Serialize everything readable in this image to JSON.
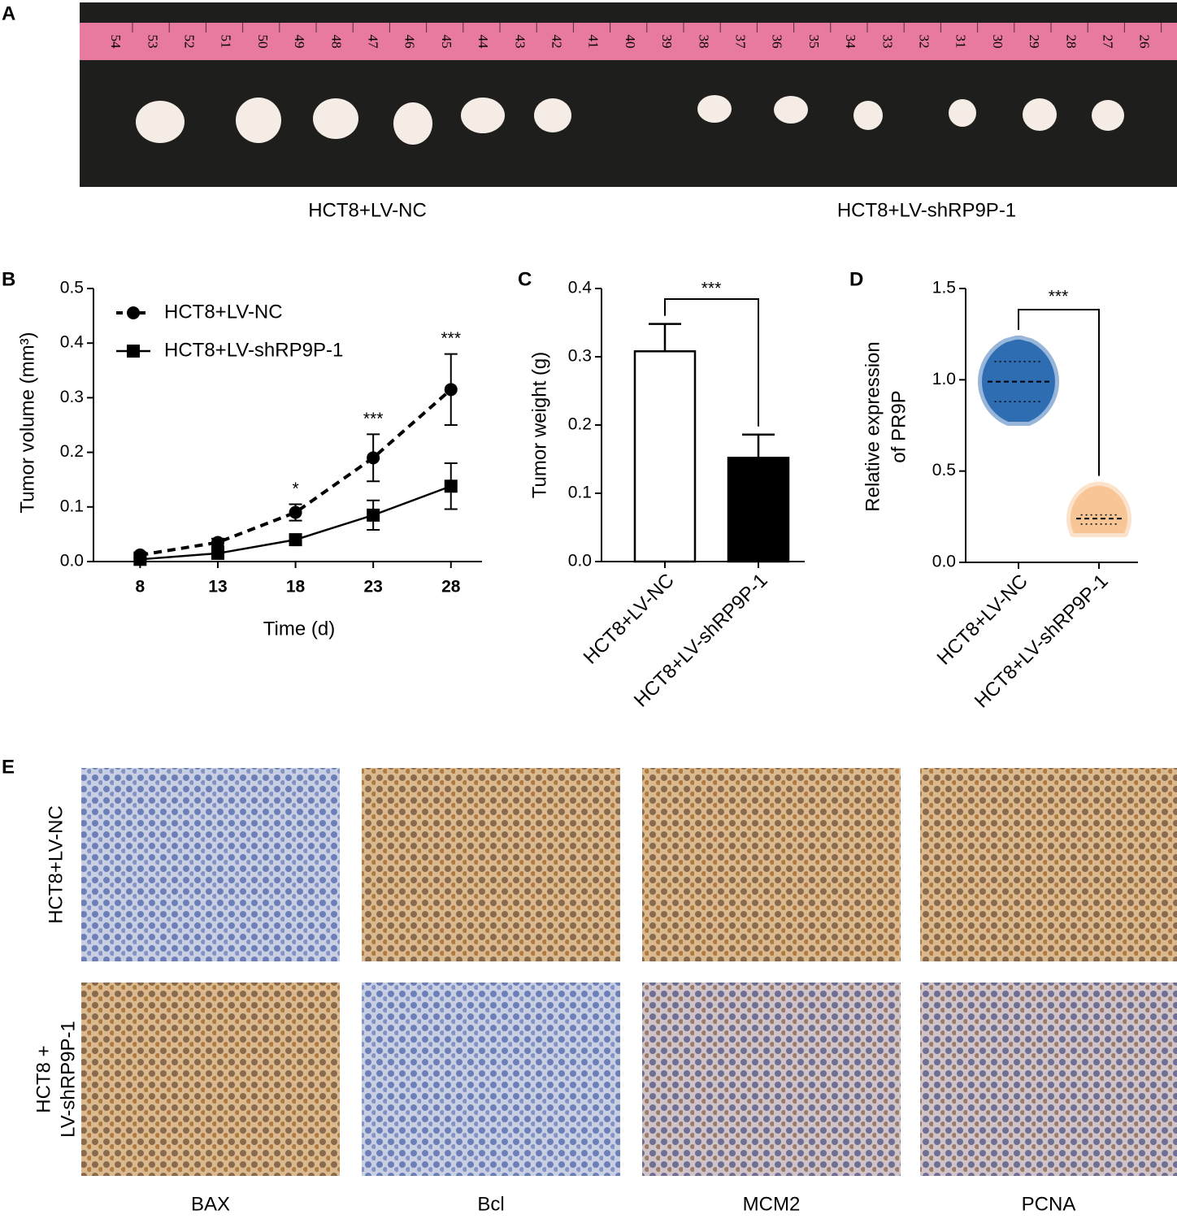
{
  "panel_labels": [
    "A",
    "B",
    "C",
    "D",
    "E"
  ],
  "photo": {
    "ruler_marks": [
      54,
      53,
      52,
      51,
      50,
      49,
      48,
      47,
      46,
      45,
      44,
      43,
      42,
      41,
      40,
      39,
      38,
      37,
      36,
      35,
      34,
      33,
      32,
      31,
      30,
      29,
      28,
      27,
      26
    ],
    "groups": [
      "HCT8+LV-NC",
      "HCT8+LV-shRP9P-1"
    ]
  },
  "chart_data": [
    {
      "type": "line",
      "x": [
        8,
        13,
        18,
        23,
        28
      ],
      "xlim": [
        5,
        30
      ],
      "xticks": [
        8,
        13,
        18,
        23,
        28
      ],
      "ylim": [
        0,
        0.5
      ],
      "yticks": [
        {
          "value": 0,
          "label": "0.0"
        },
        0.1,
        0.2,
        0.3,
        0.4,
        0.5
      ],
      "xlabel": "Time (d)",
      "ylabel": "Tumor volume (mm³)",
      "legend": "upper left",
      "series": [
        {
          "name": "HCT8+LV-NC",
          "color": "#000000",
          "marker": "circle",
          "dashed": true,
          "values": [
            0.012,
            0.035,
            0.09,
            0.19,
            0.315
          ],
          "errors": [
            0.005,
            0.007,
            0.015,
            0.043,
            0.065
          ]
        },
        {
          "name": "HCT8+LV-shRP9P-1",
          "color": "#000000",
          "marker": "square",
          "dashed": false,
          "values": [
            0.004,
            0.015,
            0.04,
            0.085,
            0.138
          ],
          "errors": [
            0.003,
            0.006,
            0.01,
            0.027,
            0.042
          ]
        }
      ],
      "annotations": [
        {
          "x": 18,
          "label": "*"
        },
        {
          "x": 23,
          "label": "***"
        },
        {
          "x": 28,
          "label": "***"
        }
      ]
    },
    {
      "type": "bar",
      "categories": [
        "HCT8+LV-NC",
        "HCT8+LV-shRP9P-1"
      ],
      "values": [
        0.308,
        0.152
      ],
      "errors": [
        0.04,
        0.034
      ],
      "colors": [
        "#ffffff",
        "#000000"
      ],
      "ylim": [
        0,
        0.4
      ],
      "yticks": [
        {
          "value": 0,
          "label": "0.0"
        },
        0.1,
        0.2,
        0.3,
        0.4
      ],
      "ylabel": "Tumor weight (g)",
      "annotation": "***"
    },
    {
      "type": "violin",
      "categories": [
        "HCT8+LV-NC",
        "HCT8+LV-shRP9P-1"
      ],
      "colors": [
        "#2f6db3",
        "#f7c596"
      ],
      "min": [
        0.77,
        0.16
      ],
      "q1": [
        0.88,
        0.21
      ],
      "median": [
        0.99,
        0.24
      ],
      "q3": [
        1.1,
        0.26
      ],
      "max": [
        1.22,
        0.42
      ],
      "ylim": [
        0,
        1.5
      ],
      "yticks": [
        {
          "value": 0,
          "label": "0.0"
        },
        0.5,
        {
          "value": 1,
          "label": "1.0"
        },
        1.5
      ],
      "ylabel": [
        "Relative expression",
        "of PR9P"
      ],
      "annotation": "***"
    }
  ],
  "ihc": {
    "rows": [
      [
        "HCT8+LV-NC"
      ],
      [
        "HCT8 +",
        "LV-shRP9P-1"
      ]
    ],
    "columns": [
      "BAX",
      "Bcl",
      "MCM2",
      "PCNA"
    ]
  }
}
